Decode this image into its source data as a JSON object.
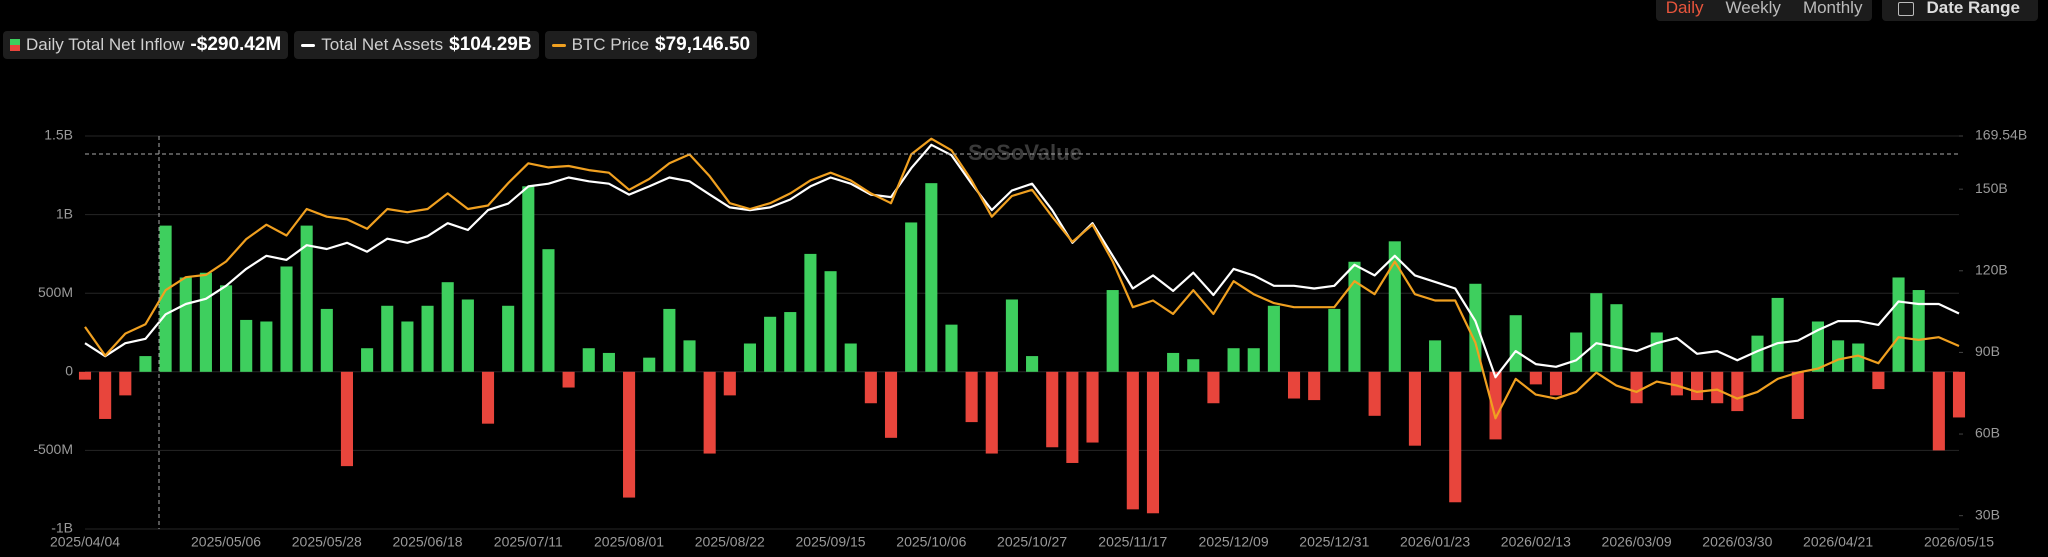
{
  "chart_data": {
    "type": "bar",
    "watermark": "SoSoValue",
    "controls": {
      "daily": "Daily",
      "weekly": "Weekly",
      "monthly": "Monthly",
      "date_range": "Date Range"
    },
    "categories": [
      "2025/04/04",
      null,
      null,
      null,
      null,
      null,
      null,
      "2025/05/06",
      null,
      null,
      null,
      null,
      "2025/05/28",
      null,
      null,
      null,
      null,
      "2025/06/18",
      null,
      null,
      null,
      null,
      "2025/07/11",
      null,
      null,
      null,
      null,
      "2025/08/01",
      null,
      null,
      null,
      null,
      "2025/08/22",
      null,
      null,
      null,
      null,
      "2025/09/15",
      null,
      null,
      null,
      null,
      "2025/10/06",
      null,
      null,
      null,
      null,
      "2025/10/27",
      null,
      null,
      null,
      null,
      "2025/11/17",
      null,
      null,
      null,
      null,
      "2025/12/09",
      null,
      null,
      null,
      null,
      "2025/12/31",
      null,
      null,
      null,
      null,
      "2026/01/23",
      null,
      null,
      null,
      null,
      "2026/02/13",
      null,
      null,
      null,
      null,
      "2026/03/09",
      null,
      null,
      null,
      null,
      "2026/03/30",
      null,
      null,
      null,
      null,
      "2026/04/21",
      null,
      null,
      null,
      null,
      null,
      "2026/05/15"
    ],
    "ylim": [
      -1000,
      1500
    ],
    "yticks": [
      {
        "value": 1500,
        "label": "1.5B"
      },
      {
        "value": 1000,
        "label": "1B"
      },
      {
        "value": 500,
        "label": "500M"
      },
      0,
      {
        "value": -500,
        "label": "-500M"
      },
      {
        "value": -1000,
        "label": "-1B"
      }
    ],
    "y2lim": [
      25.1,
      169.54
    ],
    "y2ticks": [
      {
        "value": 169.54,
        "label": "169.54B"
      },
      {
        "value": 150,
        "label": "150B"
      },
      {
        "value": 120,
        "label": "120B"
      },
      {
        "value": 90,
        "label": "90B"
      },
      {
        "value": 60,
        "label": "60B"
      },
      {
        "value": 30,
        "label": "30B"
      }
    ],
    "y3lim": [
      38300,
      126000
    ],
    "grid": true,
    "series": [
      {
        "name": "Daily Total Net Inflow",
        "type": "bar",
        "latest_label": "-$290.42M",
        "color": "#3ecf5e",
        "negative_color": "#e8453c",
        "values": [
          -50,
          -300,
          -150,
          100,
          930,
          600,
          630,
          550,
          330,
          320,
          670,
          930,
          400,
          -600,
          150,
          420,
          320,
          420,
          570,
          460,
          -330,
          420,
          1180,
          780,
          -100,
          150,
          120,
          -800,
          90,
          400,
          200,
          -520,
          -150,
          180,
          350,
          380,
          750,
          640,
          180,
          -200,
          -420,
          950,
          1200,
          300,
          -320,
          -520,
          460,
          100,
          -480,
          -580,
          -450,
          520,
          -875,
          -900,
          120,
          80,
          -200,
          150,
          150,
          420,
          -170,
          -180,
          400,
          700,
          -280,
          830,
          -470,
          200,
          -830,
          560,
          -430,
          360,
          -80,
          -150,
          250,
          500,
          430,
          -200,
          250,
          -150,
          -180,
          -200,
          -250,
          230,
          470,
          -300,
          320,
          200,
          180,
          -110,
          600,
          520,
          -500,
          -290.42
        ]
      },
      {
        "name": "Total Net Assets",
        "type": "line",
        "axis": "y2",
        "latest_label": "$104.29B",
        "color": "#ffffff",
        "values": [
          93.4,
          88.6,
          93.4,
          95,
          104,
          107.8,
          109.7,
          114.5,
          120.7,
          125.5,
          124,
          129.4,
          128,
          130.3,
          127,
          131.8,
          130.3,
          132.7,
          137.5,
          135,
          142.3,
          144.7,
          151,
          152,
          154.3,
          152.9,
          152,
          148,
          151,
          154.3,
          152.9,
          148,
          143.3,
          142.3,
          143.3,
          146.2,
          151,
          154.3,
          152,
          148,
          147.1,
          157.7,
          166.3,
          162.5,
          152,
          142.3,
          149.5,
          152,
          142.3,
          130.3,
          137.5,
          125.5,
          113.5,
          118.3,
          112.6,
          119.3,
          111.1,
          120.7,
          118.3,
          114.5,
          114.5,
          113.5,
          114.5,
          122.2,
          118.3,
          125.5,
          118.3,
          115.9,
          113.5,
          101.5,
          80.9,
          90.5,
          85.7,
          84.7,
          87.1,
          93.4,
          91.9,
          90.5,
          93.4,
          95.3,
          89.5,
          90.5,
          87.1,
          90.5,
          93.4,
          94.3,
          98.2,
          101.5,
          101.5,
          100.1,
          108.7,
          107.8,
          107.8,
          104.29
        ]
      },
      {
        "name": "BTC Price",
        "type": "line",
        "axis": "y3",
        "latest_label": "$79,146.50",
        "color": "#f0a020",
        "values": [
          83400,
          77000,
          81900,
          84000,
          91600,
          94500,
          95000,
          98000,
          103000,
          106200,
          103800,
          109700,
          108000,
          107400,
          105300,
          109700,
          109000,
          109700,
          113200,
          109700,
          110500,
          115500,
          119900,
          119000,
          119300,
          118400,
          117800,
          114000,
          116400,
          119900,
          121900,
          117000,
          111000,
          109700,
          111000,
          113200,
          116100,
          117800,
          116100,
          113200,
          111000,
          121900,
          125400,
          122800,
          116100,
          108000,
          112600,
          114000,
          108000,
          102400,
          106200,
          98000,
          87800,
          89300,
          86300,
          91600,
          86300,
          93600,
          90700,
          88700,
          87800,
          87800,
          87800,
          93600,
          90700,
          98000,
          90700,
          89300,
          89300,
          79900,
          63000,
          71800,
          68300,
          67400,
          68900,
          73200,
          70300,
          68900,
          71200,
          70300,
          68900,
          69400,
          67400,
          68900,
          71800,
          73200,
          74100,
          76100,
          77000,
          75300,
          81100,
          80500,
          81100,
          79146.5
        ]
      }
    ]
  }
}
